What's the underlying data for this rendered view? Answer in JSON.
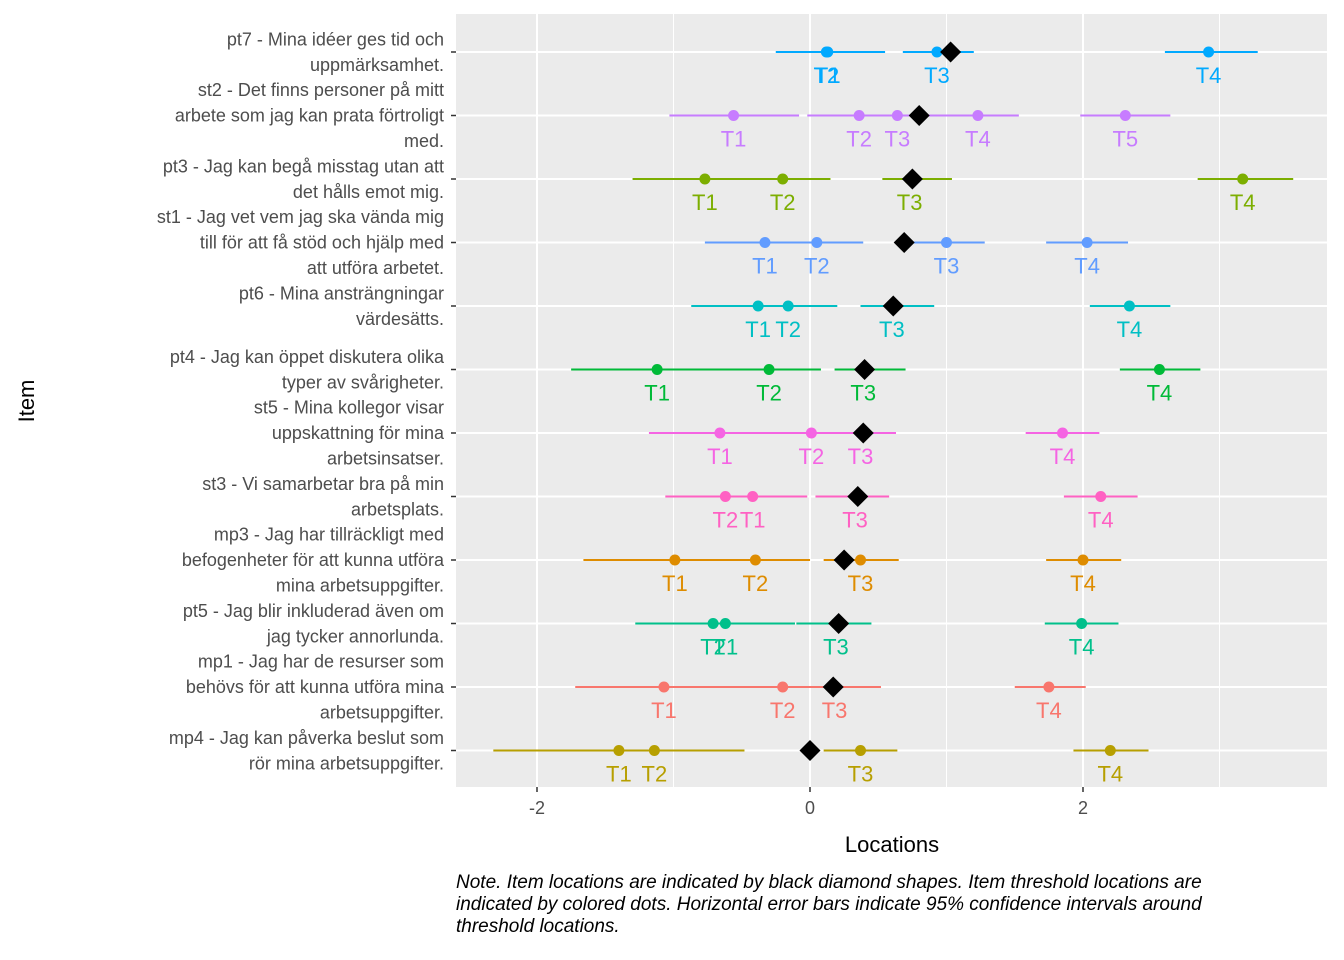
{
  "chart_data": {
    "type": "scatter",
    "xlabel": "Locations",
    "ylabel": "Item",
    "xlim": [
      -2.6,
      3.8
    ],
    "x_ticks": [
      -2,
      0,
      2
    ],
    "grid": true,
    "marker_legend": "none",
    "items": [
      {
        "label": "pt7 - Mina idéer ges tid och uppmärksamhet.",
        "color": "#00A9FF",
        "location": 1.03,
        "thresholds": [
          {
            "name": "T1",
            "value": 0.13,
            "lo": -0.25,
            "hi": 0.55
          },
          {
            "name": "T2",
            "value": 0.12,
            "lo": -0.25,
            "hi": 0.5
          },
          {
            "name": "T3",
            "value": 0.93,
            "lo": 0.68,
            "hi": 1.2
          },
          {
            "name": "T4",
            "value": 2.92,
            "lo": 2.6,
            "hi": 3.28
          }
        ]
      },
      {
        "label": "st2 - Det finns personer på mitt arbete som jag kan prata förtroligt med.",
        "color": "#C77CFF",
        "location": 0.8,
        "thresholds": [
          {
            "name": "T1",
            "value": -0.56,
            "lo": -1.03,
            "hi": -0.08
          },
          {
            "name": "T2",
            "value": 0.36,
            "lo": -0.02,
            "hi": 0.72
          },
          {
            "name": "T3",
            "value": 0.64,
            "lo": 0.3,
            "hi": 0.98
          },
          {
            "name": "T4",
            "value": 1.23,
            "lo": 0.93,
            "hi": 1.53
          },
          {
            "name": "T5",
            "value": 2.31,
            "lo": 1.98,
            "hi": 2.64
          }
        ]
      },
      {
        "label": "pt3 - Jag kan begå misstag utan att det hålls emot mig.",
        "color": "#7CAE00",
        "location": 0.75,
        "thresholds": [
          {
            "name": "T1",
            "value": -0.77,
            "lo": -1.3,
            "hi": -0.26
          },
          {
            "name": "T2",
            "value": -0.2,
            "lo": -0.55,
            "hi": 0.15
          },
          {
            "name": "T3",
            "value": 0.73,
            "lo": 0.53,
            "hi": 1.04
          },
          {
            "name": "T4",
            "value": 3.17,
            "lo": 2.84,
            "hi": 3.54
          }
        ]
      },
      {
        "label": "st1 - Jag vet vem jag ska vända mig till för att få stöd och hjälp med att utföra arbetet.",
        "color": "#619CFF",
        "location": 0.69,
        "thresholds": [
          {
            "name": "T1",
            "value": -0.33,
            "lo": -0.77,
            "hi": 0.08
          },
          {
            "name": "T2",
            "value": 0.05,
            "lo": -0.3,
            "hi": 0.39
          },
          {
            "name": "T3",
            "value": 1.0,
            "lo": 0.72,
            "hi": 1.28
          },
          {
            "name": "T4",
            "value": 2.03,
            "lo": 1.73,
            "hi": 2.33
          }
        ]
      },
      {
        "label": "pt6 - Mina ansträngningar värdesätts.",
        "color": "#00BFC4",
        "location": 0.61,
        "thresholds": [
          {
            "name": "T1",
            "value": -0.38,
            "lo": -0.87,
            "hi": 0.05
          },
          {
            "name": "T2",
            "value": -0.16,
            "lo": -0.5,
            "hi": 0.2
          },
          {
            "name": "T3",
            "value": 0.6,
            "lo": 0.37,
            "hi": 0.91
          },
          {
            "name": "T4",
            "value": 2.34,
            "lo": 2.05,
            "hi": 2.64
          }
        ]
      },
      {
        "label": "pt4 - Jag kan öppet diskutera olika typer av svårigheter.",
        "color": "#00BA38",
        "location": 0.4,
        "thresholds": [
          {
            "name": "T1",
            "value": -1.12,
            "lo": -1.75,
            "hi": -0.6
          },
          {
            "name": "T2",
            "value": -0.3,
            "lo": -0.68,
            "hi": 0.08
          },
          {
            "name": "T3",
            "value": 0.39,
            "lo": 0.18,
            "hi": 0.7
          },
          {
            "name": "T4",
            "value": 2.56,
            "lo": 2.27,
            "hi": 2.86
          }
        ]
      },
      {
        "label": "st5 - Mina kollegor visar uppskattning för mina arbetsinsatser.",
        "color": "#F564E3",
        "location": 0.39,
        "thresholds": [
          {
            "name": "T1",
            "value": -0.66,
            "lo": -1.18,
            "hi": -0.15
          },
          {
            "name": "T2",
            "value": 0.01,
            "lo": -0.33,
            "hi": 0.35
          },
          {
            "name": "T3",
            "value": 0.37,
            "lo": 0.12,
            "hi": 0.63
          },
          {
            "name": "T4",
            "value": 1.85,
            "lo": 1.58,
            "hi": 2.12
          }
        ]
      },
      {
        "label": "st3 - Vi samarbetar bra på min arbetsplats.",
        "color": "#FF61C3",
        "location": 0.35,
        "thresholds": [
          {
            "name": "T1",
            "value": -0.42,
            "lo": -0.83,
            "hi": -0.02
          },
          {
            "name": "T2",
            "value": -0.62,
            "lo": -1.06,
            "hi": -0.2
          },
          {
            "name": "T3",
            "value": 0.33,
            "lo": 0.04,
            "hi": 0.58
          },
          {
            "name": "T4",
            "value": 2.13,
            "lo": 1.86,
            "hi": 2.4
          }
        ]
      },
      {
        "label": "mp3 - Jag har tillräckligt med befogenheter för att kunna utföra mina arbetsuppgifter.",
        "color": "#DE8C00",
        "location": 0.25,
        "thresholds": [
          {
            "name": "T1",
            "value": -0.99,
            "lo": -1.66,
            "hi": -0.4
          },
          {
            "name": "T2",
            "value": -0.4,
            "lo": -0.8,
            "hi": 0.0
          },
          {
            "name": "T3",
            "value": 0.37,
            "lo": 0.1,
            "hi": 0.65
          },
          {
            "name": "T4",
            "value": 2.0,
            "lo": 1.73,
            "hi": 2.28
          }
        ]
      },
      {
        "label": "pt5 - Jag blir inkluderad även om jag tycker annorlunda.",
        "color": "#00C08B",
        "location": 0.21,
        "thresholds": [
          {
            "name": "T1",
            "value": -0.62,
            "lo": -1.16,
            "hi": -0.11
          },
          {
            "name": "T2",
            "value": -0.71,
            "lo": -1.28,
            "hi": -0.22
          },
          {
            "name": "T3",
            "value": 0.19,
            "lo": -0.1,
            "hi": 0.45
          },
          {
            "name": "T4",
            "value": 1.99,
            "lo": 1.72,
            "hi": 2.26
          }
        ]
      },
      {
        "label": "mp1 - Jag har de resurser som behövs för att kunna utföra mina arbetsuppgifter.",
        "color": "#F8766D",
        "location": 0.17,
        "thresholds": [
          {
            "name": "T1",
            "value": -1.07,
            "lo": -1.72,
            "hi": -0.48
          },
          {
            "name": "T2",
            "value": -0.2,
            "lo": -0.6,
            "hi": 0.2
          },
          {
            "name": "T3",
            "value": 0.18,
            "lo": -0.15,
            "hi": 0.52
          },
          {
            "name": "T4",
            "value": 1.75,
            "lo": 1.5,
            "hi": 2.02
          }
        ]
      },
      {
        "label": "mp4 - Jag kan påverka beslut som rör mina arbetsuppgifter.",
        "color": "#B79F00",
        "location": 0.0,
        "thresholds": [
          {
            "name": "T1",
            "value": -1.4,
            "lo": -2.32,
            "hi": -0.64
          },
          {
            "name": "T2",
            "value": -1.14,
            "lo": -1.6,
            "hi": -0.48
          },
          {
            "name": "T3",
            "value": 0.37,
            "lo": 0.1,
            "hi": 0.64
          },
          {
            "name": "T4",
            "value": 2.2,
            "lo": 1.93,
            "hi": 2.48
          }
        ]
      }
    ]
  },
  "note": "Note. Item locations are indicated by black diamond shapes. Item threshold locations are indicated by colored dots. Horizontal error bars indicate 95% confidence intervals around threshold locations."
}
